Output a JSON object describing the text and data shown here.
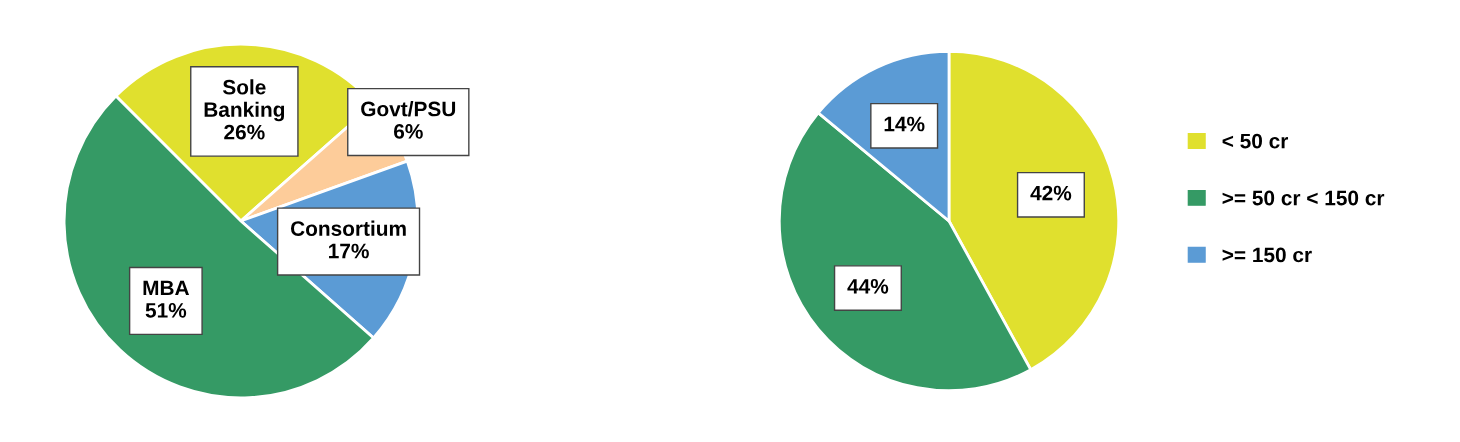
{
  "chart_data": [
    {
      "type": "pie",
      "categories": [
        "Sole Banking",
        "Govt/PSU",
        "Consortium",
        "MBA"
      ],
      "values": [
        26,
        6,
        17,
        51
      ],
      "colors": [
        "#e0e02e",
        "#fdcc9a",
        "#5b9bd5",
        "#359a65"
      ],
      "value_labels": [
        "26%",
        "6%",
        "17%",
        "51%"
      ],
      "legend": false
    },
    {
      "type": "pie",
      "categories": [
        "< 50 cr",
        ">= 50 cr < 150 cr",
        ">= 150 cr"
      ],
      "values": [
        42,
        44,
        14
      ],
      "colors": [
        "#e0e02e",
        "#359a65",
        "#5b9bd5"
      ],
      "value_labels": [
        "42%",
        "44%",
        "14%"
      ],
      "legend": "right"
    }
  ]
}
